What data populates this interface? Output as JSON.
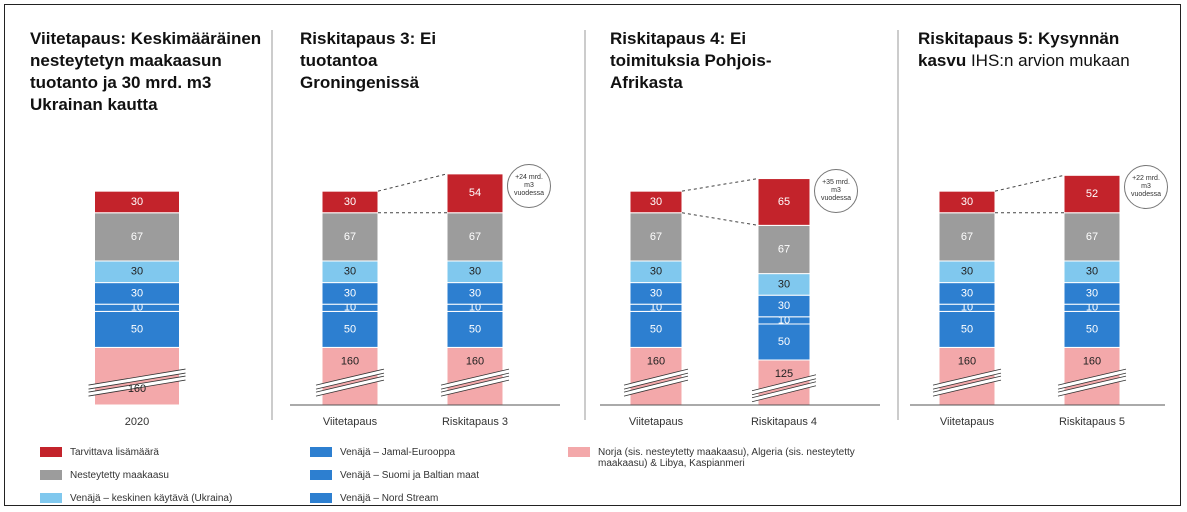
{
  "chart_data": {
    "type": "bar",
    "stacked": true,
    "axis_break": true,
    "legend": [
      {
        "name": "Norja (sis. nesteytetty maakaasu), Algeria (sis. nesteytetty maakaasu) & Libya, Kaspianmeri",
        "color": "#f3a8aa"
      },
      {
        "name": "Venäjä – Nord Stream",
        "color": "#2d7fd0"
      },
      {
        "name": "Venäjä – Suomi ja Baltian maat",
        "color": "#2d7fd0"
      },
      {
        "name": "Venäjä – Jamal-Eurooppa",
        "color": "#2d7fd0"
      },
      {
        "name": "Venäjä – keskinen käytävä (Ukraina)",
        "color": "#80c8ee"
      },
      {
        "name": "Nesteytetty maakaasu",
        "color": "#9c9c9c"
      },
      {
        "name": "Tarvittava lisämäärä",
        "color": "#c3232b"
      }
    ],
    "charts": [
      {
        "title": "Viitetapaus: Keskimääräinen nesteytetyn maakaasun tuotanto ja 30 mrd. m3 Ukrainan kautta",
        "categories": [
          "2020"
        ],
        "series": [
          {
            "values": [
              160
            ]
          },
          {
            "values": [
              50
            ]
          },
          {
            "values": [
              10
            ]
          },
          {
            "values": [
              30
            ]
          },
          {
            "values": [
              30
            ]
          },
          {
            "values": [
              67
            ]
          },
          {
            "values": [
              30
            ]
          }
        ]
      },
      {
        "title": "Riskitapaus 3: Ei tuotantoa Groningenissä",
        "categories": [
          "Viitetapaus",
          "Riskitapaus 3"
        ],
        "series": [
          {
            "values": [
              160,
              160
            ]
          },
          {
            "values": [
              50,
              50
            ]
          },
          {
            "values": [
              10,
              10
            ]
          },
          {
            "values": [
              30,
              30
            ]
          },
          {
            "values": [
              30,
              30
            ]
          },
          {
            "values": [
              67,
              67
            ]
          },
          {
            "values": [
              30,
              54
            ]
          }
        ],
        "annotation": "+24 mrd. m3 vuodessa"
      },
      {
        "title": "Riskitapaus 4: Ei toimituksia Pohjois-Afrikasta",
        "categories": [
          "Viitetapaus",
          "Riskitapaus 4"
        ],
        "series": [
          {
            "values": [
              160,
              125
            ]
          },
          {
            "values": [
              50,
              50
            ]
          },
          {
            "values": [
              10,
              10
            ]
          },
          {
            "values": [
              30,
              30
            ]
          },
          {
            "values": [
              30,
              30
            ]
          },
          {
            "values": [
              67,
              67
            ]
          },
          {
            "values": [
              30,
              65
            ]
          }
        ],
        "annotation": "+35 mrd. m3 vuodessa"
      },
      {
        "title": "Riskitapaus 5: Kysynnän kasvu",
        "subtitle": "IHS:n arvion mukaan",
        "categories": [
          "Viitetapaus",
          "Riskitapaus 5"
        ],
        "series": [
          {
            "values": [
              160,
              160
            ]
          },
          {
            "values": [
              50,
              50
            ]
          },
          {
            "values": [
              10,
              10
            ]
          },
          {
            "values": [
              30,
              30
            ]
          },
          {
            "values": [
              30,
              30
            ]
          },
          {
            "values": [
              67,
              67
            ]
          },
          {
            "values": [
              30,
              52
            ]
          }
        ],
        "annotation": "+22 mrd. m3 vuodessa"
      }
    ]
  }
}
